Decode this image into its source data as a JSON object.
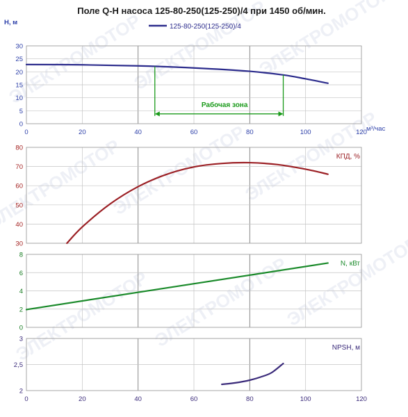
{
  "title": "Поле Q-H насоса 125-80-250(125-250)/4 при 1450 об/мин.",
  "legend": {
    "label": "125-80-250(125-250)/4",
    "color": "#2b2b8c"
  },
  "colors": {
    "head": "#2b2b8c",
    "efficiency": "#9b1f24",
    "power": "#1a8a2a",
    "npsh": "#3a2a7a",
    "work_zone": "#1a9a1a"
  },
  "chart_data": [
    {
      "type": "line",
      "ylabel": "H, м",
      "xlabel": "м³/час",
      "xlim": [
        0,
        120
      ],
      "ylim": [
        0,
        30
      ],
      "x_ticks": [
        0,
        20,
        40,
        60,
        80,
        100,
        120
      ],
      "y_ticks": [
        0,
        5,
        10,
        15,
        20,
        25,
        30
      ],
      "grid": true,
      "series": [
        {
          "name": "125-80-250(125-250)/4",
          "x": [
            0,
            20,
            40,
            60,
            80,
            92,
            100,
            108
          ],
          "y": [
            22.8,
            22.7,
            22.3,
            21.5,
            20.2,
            18.8,
            17.3,
            15.6
          ]
        }
      ],
      "work_zone": {
        "label": "Рабочая зона",
        "x_start": 46,
        "x_end": 92,
        "y_level": 3.8
      }
    },
    {
      "type": "line",
      "series_label": "КПД, %",
      "xlim": [
        0,
        120
      ],
      "ylim": [
        30,
        80
      ],
      "y_ticks": [
        30,
        40,
        50,
        60,
        70,
        80
      ],
      "grid": true,
      "series": [
        {
          "x": [
            14.5,
            20,
            30,
            40,
            50,
            60,
            70,
            80,
            90,
            100,
            108
          ],
          "y": [
            30.0,
            38.5,
            50.5,
            59.5,
            65.8,
            69.8,
            71.6,
            72.0,
            71.0,
            68.6,
            66.0
          ]
        }
      ]
    },
    {
      "type": "line",
      "series_label": "N, кВт",
      "xlim": [
        0,
        120
      ],
      "ylim": [
        0,
        8
      ],
      "y_ticks": [
        0,
        2,
        4,
        6,
        8
      ],
      "grid": true,
      "series": [
        {
          "x": [
            0,
            108
          ],
          "y": [
            1.95,
            7.05
          ]
        }
      ]
    },
    {
      "type": "line",
      "series_label": "NPSH, м",
      "xlim": [
        0,
        120
      ],
      "ylim": [
        2,
        3
      ],
      "x_ticks": [
        0,
        20,
        40,
        60,
        80,
        100,
        120
      ],
      "y_ticks": [
        "2",
        "2,5",
        "3"
      ],
      "grid": true,
      "series": [
        {
          "x": [
            70,
            75,
            80,
            85,
            88,
            92
          ],
          "y": [
            2.12,
            2.15,
            2.2,
            2.28,
            2.35,
            2.52
          ]
        }
      ]
    }
  ],
  "watermark": "ЭЛЕКТРОМОТОР"
}
